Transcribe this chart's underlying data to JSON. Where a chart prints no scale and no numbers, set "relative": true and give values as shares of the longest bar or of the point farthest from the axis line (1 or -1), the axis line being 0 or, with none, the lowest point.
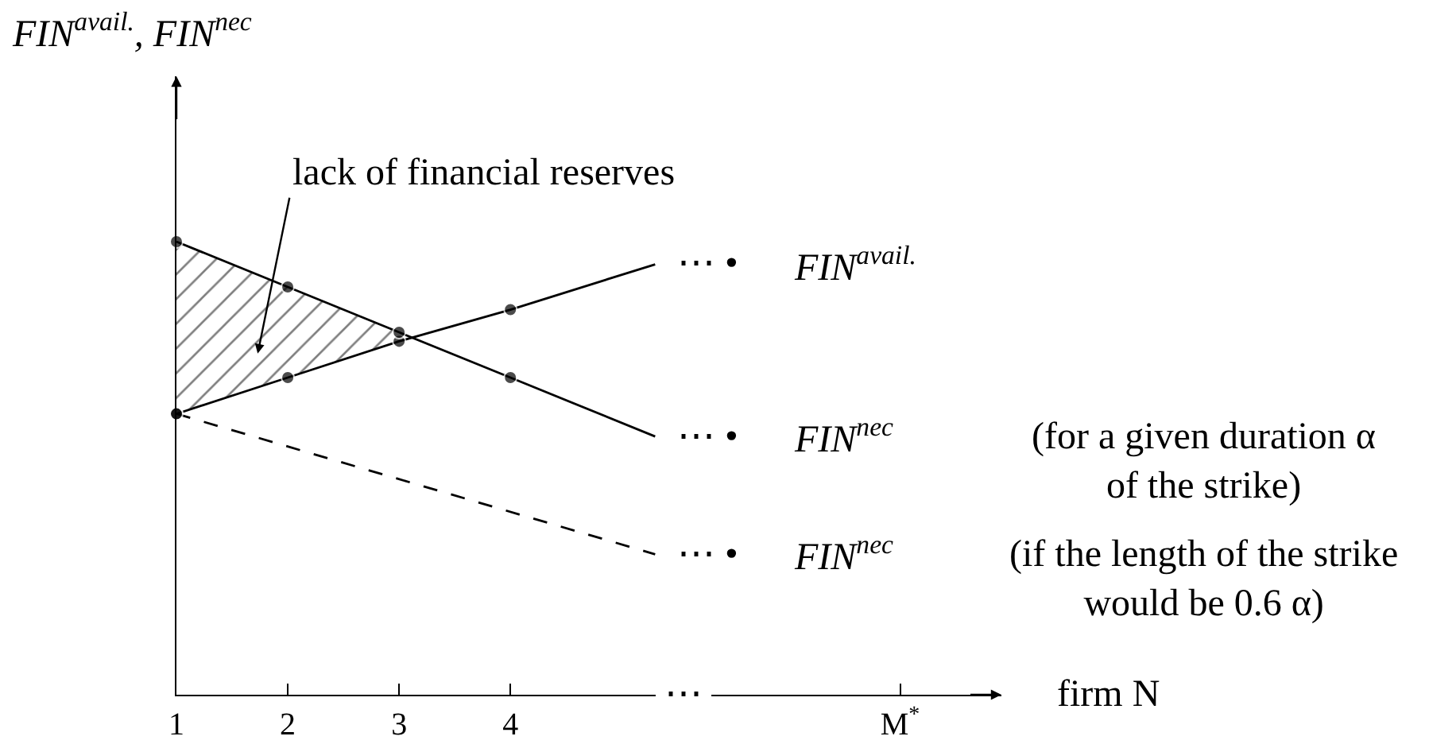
{
  "chart_data": {
    "type": "line",
    "ylabel": "FIN$^{avail.}$, FIN$^{nec}$",
    "xlabel": "firm N",
    "relative": true,
    "xlim": [
      1,
      8.41
    ],
    "xticks": [
      1,
      2,
      3,
      4,
      {
        "value": 7.5,
        "label": "M$^{*}$"
      }
    ],
    "tick_labels": "x",
    "marker": "circle",
    "line_style": "solid",
    "series": [
      {
        "name": "FIN$^{avail.}$",
        "color": "#000000",
        "x": [
          1,
          2,
          3,
          4,
          5.3
        ],
        "values": [
          0.62,
          0.7,
          0.78,
          0.85,
          0.95
        ],
        "lower": [
          0.62,
          0.7,
          0.78,
          null,
          null
        ],
        "upper": [
          1.0,
          0.9,
          0.8,
          null,
          null
        ]
      },
      {
        "name": "FIN$^{nec}$",
        "color": "#000000",
        "x": [
          1,
          2,
          3,
          4,
          5.3
        ],
        "values": [
          1.0,
          0.9,
          0.8,
          0.7,
          0.57
        ]
      },
      {
        "name": "FIN$^{nec}$",
        "color": "#000000",
        "x": [
          1,
          5.3
        ],
        "values": [
          0.62,
          0.31
        ],
        "line_style": "dashed"
      }
    ],
    "annotations": [
      "lack of financial reserves",
      "⋯ •",
      "⋯ •",
      "⋯ •",
      "⋯",
      "(for a given duration α\nof the strike)",
      "(if the length of the strike\nwould be 0.6 α)"
    ]
  }
}
